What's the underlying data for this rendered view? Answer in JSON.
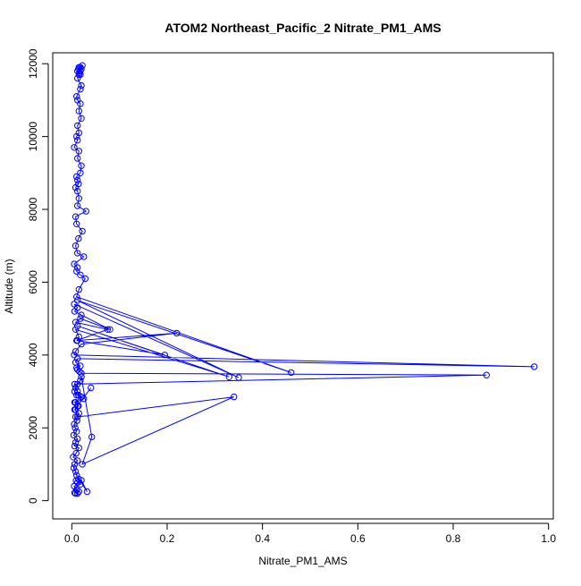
{
  "chart_data": {
    "type": "line",
    "title": "ATOM2 Northeast_Pacific_2 Nitrate_PM1_AMS",
    "xlabel": "Nitrate_PM1_AMS",
    "ylabel": "Altitude (m)",
    "xlim": [
      -0.04,
      1.01
    ],
    "ylim": [
      -500,
      12300
    ],
    "x_ticks": [
      0.0,
      0.2,
      0.4,
      0.6,
      0.8,
      1.0
    ],
    "x_tick_labels": [
      "0.0",
      "0.2",
      "0.4",
      "0.6",
      "0.8",
      "1.0"
    ],
    "y_ticks": [
      0,
      2000,
      4000,
      6000,
      8000,
      10000,
      12000
    ],
    "y_tick_labels": [
      "0",
      "2000",
      "4000",
      "6000",
      "8000",
      "10000",
      "12000"
    ],
    "grid": false,
    "color": "#0000ff",
    "marker": "open-circle",
    "series": [
      {
        "x": [
          0.008,
          0.012,
          0.006,
          0.015,
          0.01,
          0.005,
          0.018,
          0.012,
          0.009,
          0.014,
          0.02,
          0.032,
          0.01,
          0.008,
          0.004,
          0.006,
          0.012,
          0.003,
          0.009,
          0.015,
          0.006,
          0.008,
          0.012,
          0.004,
          0.01,
          0.007,
          0.005,
          0.011,
          0.008,
          0.015,
          0.006,
          0.04,
          0.012,
          0.008,
          0.025,
          0.01,
          0.006,
          0.012,
          0.018,
          0.02,
          0.042,
          0.022,
          0.34,
          0.012,
          0.008,
          0.014,
          0.006,
          0.02,
          0.014,
          0.012,
          0.008,
          0.006,
          0.87,
          0.02,
          0.016,
          0.012,
          0.01,
          0.018,
          0.008,
          0.012,
          0.97,
          0.005,
          0.008,
          0.02,
          0.22,
          0.012,
          0.015,
          0.008,
          0.33,
          0.012,
          0.195,
          0.01,
          0.075,
          0.008,
          0.018,
          0.08,
          0.02,
          0.006,
          0.012,
          0.005,
          0.35,
          0.012,
          0.46,
          0.01,
          0.015,
          0.028,
          0.018,
          0.01,
          0.012,
          0.005,
          0.025,
          0.012,
          0.008,
          0.014,
          0.022,
          0.01,
          0.008,
          0.03,
          0.012,
          0.015,
          0.012,
          0.008,
          0.014,
          0.012,
          0.01,
          0.018,
          0.02,
          0.012,
          0.015,
          0.005,
          0.012,
          0.01,
          0.015,
          0.012,
          0.02,
          0.015,
          0.018,
          0.012,
          0.01,
          0.018,
          0.02,
          0.012,
          0.015,
          0.018,
          0.014,
          0.018,
          0.022,
          0.015,
          0.02,
          0.012,
          0.016,
          0.018
        ],
        "y": [
          200,
          200,
          220,
          250,
          300,
          400,
          450,
          500,
          550,
          600,
          560,
          250,
          700,
          800,
          900,
          1000,
          1100,
          1200,
          1300,
          1450,
          1500,
          1600,
          1700,
          1800,
          1900,
          2000,
          2100,
          2200,
          2300,
          2400,
          2500,
          3100,
          2600,
          2700,
          2800,
          2900,
          3000,
          3200,
          3300,
          3400,
          1750,
          1000,
          2850,
          2300,
          2500,
          2600,
          2700,
          2850,
          2900,
          3000,
          3100,
          3200,
          3450,
          3500,
          3550,
          3600,
          3650,
          3700,
          3800,
          3900,
          3680,
          4000,
          4100,
          4300,
          4600,
          4400,
          4500,
          4700,
          3400,
          4800,
          4000,
          4400,
          4700,
          4900,
          5000,
          4700,
          5100,
          5200,
          5300,
          5400,
          3380,
          5500,
          3520,
          5600,
          5800,
          6100,
          6200,
          6300,
          6400,
          6500,
          6700,
          6800,
          7000,
          7200,
          7400,
          7600,
          7800,
          7950,
          8100,
          8300,
          8500,
          8600,
          8700,
          8800,
          8900,
          9000,
          9200,
          9400,
          9600,
          9700,
          9900,
          10000,
          10100,
          10300,
          10500,
          10700,
          10900,
          11000,
          11100,
          11300,
          11400,
          11600,
          11700,
          11800,
          11850,
          11900,
          11950,
          11900,
          11850,
          11800,
          11750,
          11700
        ]
      }
    ]
  }
}
